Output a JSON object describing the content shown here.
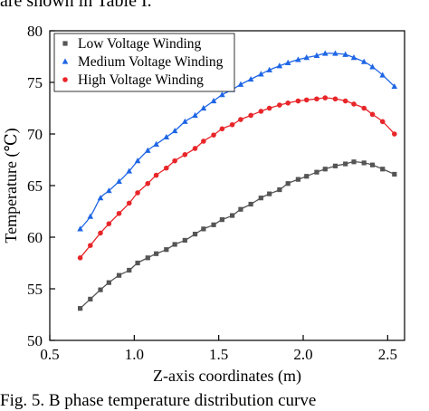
{
  "header_text": "are shown in Table I.",
  "caption": "Fig. 5. B phase temperature distribution curve",
  "colors": {
    "low": "#555555",
    "medium": "#1f66e5",
    "high": "#e8262a",
    "axis": "#000000"
  },
  "chart_data": {
    "type": "scatter",
    "xlabel": "Z-axis coordinates (m)",
    "ylabel": "Temperature (℃)",
    "xlim": [
      0.5,
      2.6
    ],
    "ylim": [
      50,
      80
    ],
    "xticks": [
      0.5,
      1.0,
      1.5,
      2.0,
      2.5
    ],
    "yticks": [
      50,
      55,
      60,
      65,
      70,
      75,
      80
    ],
    "x_tick_labels": [
      "0.5",
      "1.0",
      "1.5",
      "2.0",
      "2.5"
    ],
    "y_tick_labels": [
      "50",
      "55",
      "60",
      "65",
      "70",
      "75",
      "80"
    ],
    "grid": false,
    "legend_position": "top-left",
    "series": [
      {
        "name": "Low Voltage Winding",
        "marker": "square",
        "color": "#555555",
        "x": [
          0.68,
          0.74,
          0.8,
          0.85,
          0.91,
          0.97,
          1.02,
          1.08,
          1.13,
          1.19,
          1.24,
          1.3,
          1.36,
          1.41,
          1.47,
          1.52,
          1.58,
          1.63,
          1.69,
          1.75,
          1.8,
          1.86,
          1.91,
          1.97,
          2.02,
          2.08,
          2.13,
          2.19,
          2.25,
          2.3,
          2.36,
          2.41,
          2.47,
          2.54
        ],
        "y": [
          53.1,
          54.0,
          54.9,
          55.6,
          56.3,
          56.8,
          57.5,
          58.0,
          58.4,
          58.8,
          59.3,
          59.7,
          60.3,
          60.8,
          61.2,
          61.7,
          62.1,
          62.7,
          63.2,
          63.8,
          64.2,
          64.6,
          65.2,
          65.6,
          65.9,
          66.3,
          66.6,
          66.9,
          67.1,
          67.3,
          67.2,
          67.0,
          66.6,
          66.1
        ]
      },
      {
        "name": "Medium Voltage Winding",
        "marker": "triangle",
        "color": "#1f66e5",
        "x": [
          0.68,
          0.74,
          0.8,
          0.85,
          0.91,
          0.97,
          1.02,
          1.08,
          1.13,
          1.19,
          1.24,
          1.3,
          1.36,
          1.41,
          1.47,
          1.52,
          1.58,
          1.63,
          1.69,
          1.75,
          1.8,
          1.86,
          1.91,
          1.97,
          2.02,
          2.08,
          2.13,
          2.19,
          2.25,
          2.3,
          2.36,
          2.41,
          2.47,
          2.54
        ],
        "y": [
          60.8,
          62.0,
          63.8,
          64.5,
          65.4,
          66.4,
          67.4,
          68.4,
          69.0,
          69.7,
          70.3,
          71.2,
          71.8,
          72.5,
          73.2,
          73.8,
          74.3,
          74.8,
          75.3,
          75.8,
          76.2,
          76.6,
          76.9,
          77.2,
          77.4,
          77.6,
          77.8,
          77.8,
          77.7,
          77.4,
          77.0,
          76.5,
          75.7,
          74.6
        ]
      },
      {
        "name": "High Voltage Winding",
        "marker": "circle",
        "color": "#e8262a",
        "x": [
          0.68,
          0.74,
          0.8,
          0.85,
          0.91,
          0.97,
          1.02,
          1.08,
          1.13,
          1.19,
          1.24,
          1.3,
          1.36,
          1.41,
          1.47,
          1.52,
          1.58,
          1.63,
          1.69,
          1.75,
          1.8,
          1.86,
          1.91,
          1.97,
          2.02,
          2.08,
          2.13,
          2.19,
          2.25,
          2.3,
          2.36,
          2.41,
          2.47,
          2.54
        ],
        "y": [
          58.0,
          59.2,
          60.4,
          61.3,
          62.3,
          63.3,
          64.3,
          65.2,
          66.0,
          66.7,
          67.4,
          68.0,
          68.6,
          69.3,
          69.9,
          70.5,
          70.9,
          71.4,
          71.8,
          72.2,
          72.5,
          72.8,
          73.0,
          73.2,
          73.3,
          73.4,
          73.5,
          73.4,
          73.2,
          72.9,
          72.5,
          71.9,
          71.2,
          70.0
        ]
      }
    ]
  }
}
